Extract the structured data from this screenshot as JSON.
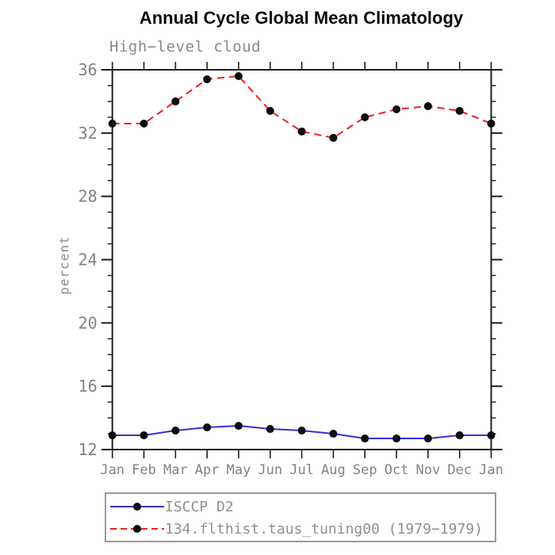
{
  "title": "Annual Cycle Global Mean Climatology",
  "subtitle": "High−level cloud",
  "chart_data": {
    "type": "line",
    "title": "Annual Cycle Global Mean Climatology",
    "subtitle": "High−level cloud",
    "ylabel": "percent",
    "ylim": [
      12,
      36
    ],
    "y_major_ticks": [
      12,
      16,
      20,
      24,
      28,
      32,
      36
    ],
    "y_minor_step": 1,
    "grid": false,
    "legend_position": "bottom",
    "categories": [
      "Jan",
      "Feb",
      "Mar",
      "Apr",
      "May",
      "Jun",
      "Jul",
      "Aug",
      "Sep",
      "Oct",
      "Nov",
      "Dec",
      "Jan"
    ],
    "series": [
      {
        "name": "ISCCP D2",
        "color": "#3232d8",
        "line_style": "solid",
        "marker": "filled-black-circle",
        "marker_color": "#0a0a0a",
        "values": [
          12.9,
          12.9,
          13.2,
          13.4,
          13.5,
          13.3,
          13.2,
          13.0,
          12.7,
          12.7,
          12.7,
          12.9,
          12.9
        ]
      },
      {
        "name": "134.flthist.taus_tuning00 (1979−1979)",
        "color": "#ef2020",
        "line_style": "dashed",
        "marker": "filled-black-circle",
        "marker_color": "#0a0a0a",
        "values": [
          32.6,
          32.6,
          34.0,
          35.4,
          35.6,
          33.4,
          32.1,
          31.7,
          33.0,
          33.5,
          33.7,
          33.4,
          32.6
        ]
      }
    ]
  },
  "colors": {
    "axis": "#1f1f1f",
    "tick_label": "#828282",
    "subtitle_text": "#8a8a8a",
    "legend_text": "#8f8f8f",
    "legend_border": "#9a9a9a",
    "background": "#ffffff"
  }
}
